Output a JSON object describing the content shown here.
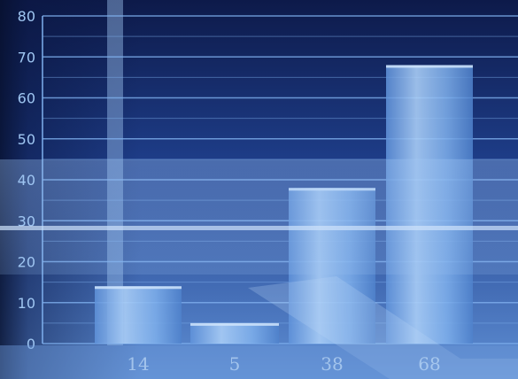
{
  "chart_data": {
    "type": "bar",
    "categories": [
      "14",
      "5",
      "38",
      "68"
    ],
    "values": [
      14,
      5,
      38,
      68
    ],
    "ylim": [
      0,
      80
    ],
    "yticks": [
      "0",
      "10",
      "20",
      "30",
      "40",
      "50",
      "60",
      "70",
      "80"
    ],
    "grid": true,
    "title": "",
    "xlabel": "",
    "ylabel": ""
  },
  "colors": {
    "background_top": "#0e1d52",
    "background_bottom": "#3c64b4",
    "bar_fill": "#8cbcf0",
    "bar_highlight": "#cfe4fb",
    "grid_line": "#7fb0ee",
    "tick_text": "#9fc6f2"
  }
}
